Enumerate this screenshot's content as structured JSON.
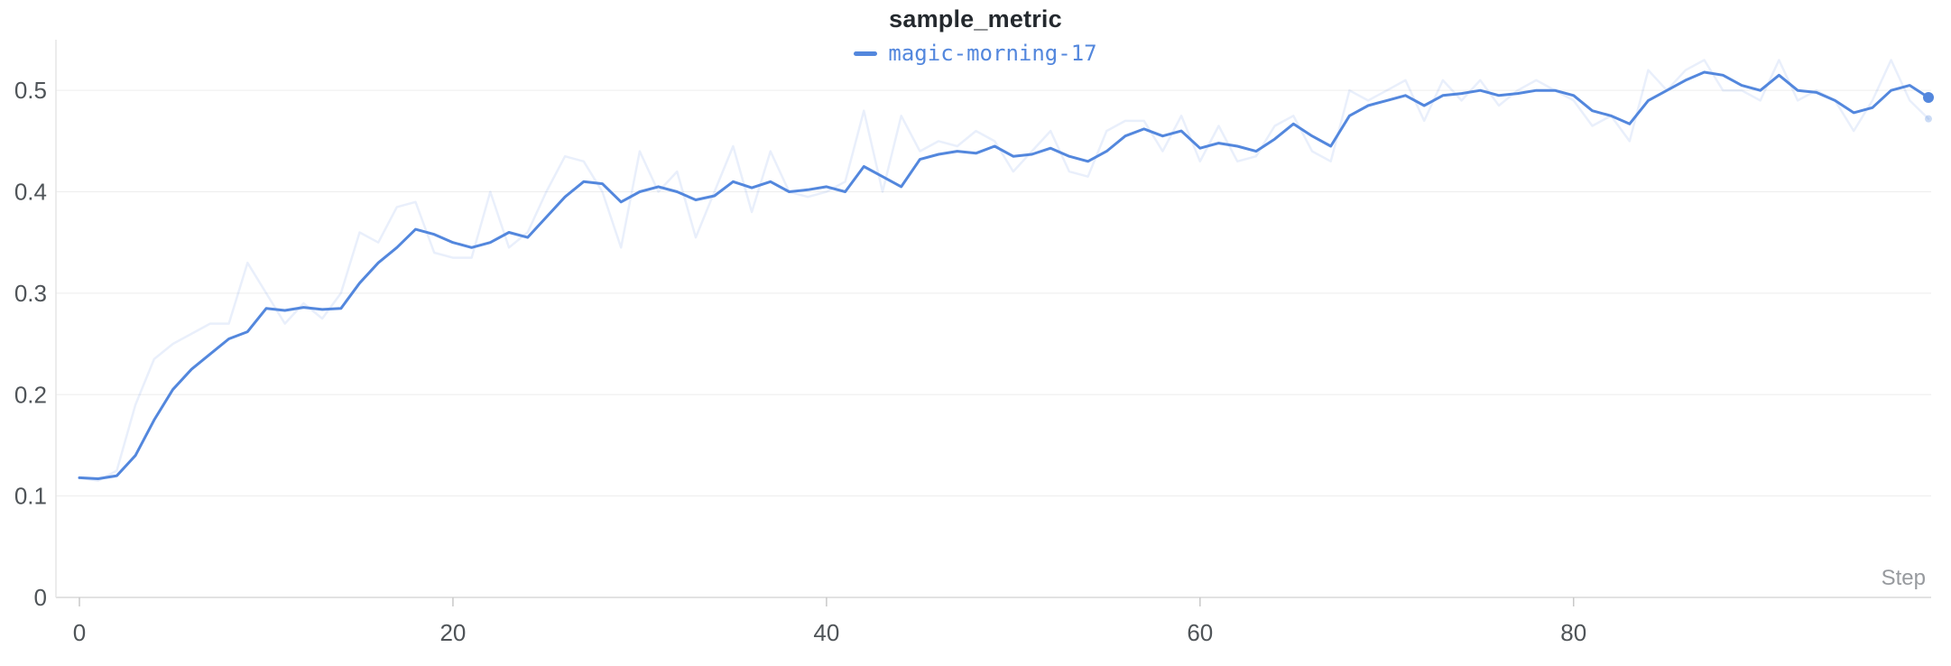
{
  "panel": {
    "title": "sample_metric"
  },
  "chart_data": {
    "type": "line",
    "title": "sample_metric",
    "xlabel": "Step",
    "ylabel": "",
    "xlim": [
      0,
      99
    ],
    "ylim": [
      0,
      0.55
    ],
    "x_ticks": [
      0,
      20,
      40,
      60,
      80
    ],
    "y_ticks": [
      0,
      0.1,
      0.2,
      0.3,
      0.4,
      0.5
    ],
    "grid": true,
    "legend_position": "top-center",
    "accent_color": "#5387DD",
    "series": [
      {
        "name": "magic-morning-17",
        "role": "smoothed",
        "color": "#5387DD",
        "opacity": 1,
        "end_marker": true,
        "values": [
          0.118,
          0.117,
          0.12,
          0.14,
          0.175,
          0.205,
          0.225,
          0.24,
          0.255,
          0.262,
          0.285,
          0.283,
          0.286,
          0.284,
          0.285,
          0.31,
          0.33,
          0.345,
          0.363,
          0.358,
          0.35,
          0.345,
          0.35,
          0.36,
          0.355,
          0.375,
          0.395,
          0.41,
          0.408,
          0.39,
          0.4,
          0.405,
          0.4,
          0.392,
          0.396,
          0.41,
          0.404,
          0.41,
          0.4,
          0.402,
          0.405,
          0.4,
          0.425,
          0.415,
          0.405,
          0.432,
          0.437,
          0.44,
          0.438,
          0.445,
          0.435,
          0.437,
          0.443,
          0.435,
          0.43,
          0.44,
          0.455,
          0.462,
          0.455,
          0.46,
          0.443,
          0.448,
          0.445,
          0.44,
          0.452,
          0.467,
          0.455,
          0.445,
          0.475,
          0.485,
          0.49,
          0.495,
          0.485,
          0.495,
          0.497,
          0.5,
          0.495,
          0.497,
          0.5,
          0.5,
          0.495,
          0.48,
          0.475,
          0.467,
          0.49,
          0.5,
          0.51,
          0.518,
          0.515,
          0.505,
          0.5,
          0.515,
          0.5,
          0.498,
          0.49,
          0.478,
          0.483,
          0.5,
          0.505,
          0.493
        ]
      },
      {
        "name": "magic-morning-17",
        "role": "original-unsmoothed",
        "color": "#5387DD",
        "opacity": 0.13,
        "end_marker": true,
        "values": [
          0.118,
          0.115,
          0.125,
          0.19,
          0.235,
          0.25,
          0.26,
          0.27,
          0.27,
          0.33,
          0.3,
          0.27,
          0.29,
          0.275,
          0.3,
          0.36,
          0.35,
          0.385,
          0.39,
          0.34,
          0.335,
          0.335,
          0.4,
          0.345,
          0.36,
          0.4,
          0.435,
          0.43,
          0.4,
          0.345,
          0.44,
          0.4,
          0.42,
          0.355,
          0.4,
          0.445,
          0.38,
          0.44,
          0.4,
          0.395,
          0.4,
          0.41,
          0.48,
          0.4,
          0.475,
          0.44,
          0.45,
          0.445,
          0.46,
          0.45,
          0.42,
          0.44,
          0.46,
          0.42,
          0.415,
          0.46,
          0.47,
          0.47,
          0.44,
          0.475,
          0.43,
          0.465,
          0.43,
          0.435,
          0.465,
          0.475,
          0.44,
          0.43,
          0.5,
          0.49,
          0.5,
          0.51,
          0.47,
          0.51,
          0.49,
          0.51,
          0.485,
          0.5,
          0.51,
          0.5,
          0.49,
          0.465,
          0.475,
          0.45,
          0.52,
          0.5,
          0.52,
          0.53,
          0.5,
          0.5,
          0.49,
          0.53,
          0.49,
          0.5,
          0.49,
          0.46,
          0.49,
          0.53,
          0.49,
          0.472
        ]
      }
    ]
  }
}
